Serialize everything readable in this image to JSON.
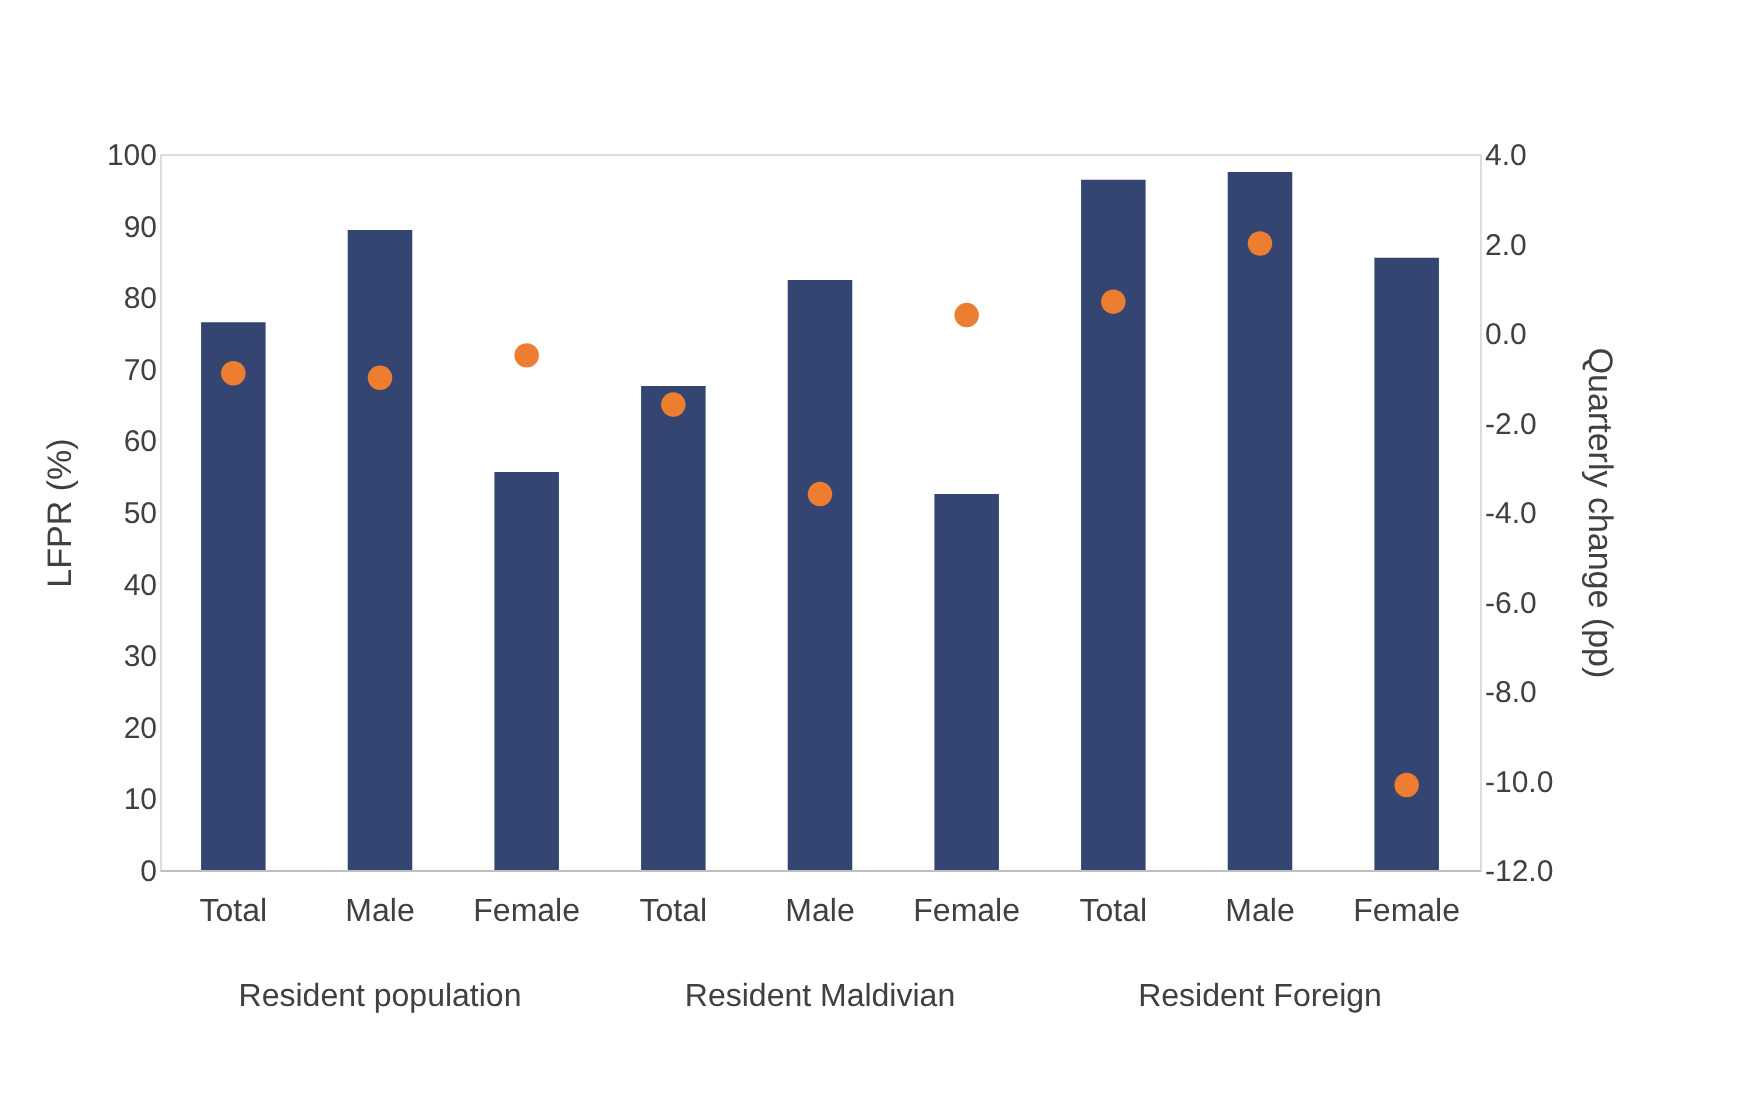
{
  "chart_data": {
    "type": "bar",
    "ylabel": "LFPR (%)",
    "y2label": "Quarterly change (pp)",
    "categories": [
      "Total",
      "Male",
      "Female",
      "Total",
      "Male",
      "Female",
      "Total",
      "Male",
      "Female"
    ],
    "series": [
      {
        "color": "#334570",
        "values": [
          76.5,
          89.4,
          55.6,
          67.6,
          82.4,
          52.5,
          96.4,
          97.5,
          85.5
        ]
      },
      {
        "type": "scatter",
        "axis": "y2",
        "color": "#ed7d31",
        "marker": "circle",
        "values": [
          -0.9,
          -1.0,
          -0.5,
          -1.6,
          -3.6,
          0.4,
          0.7,
          2.0,
          -10.1
        ]
      }
    ],
    "ylim": [
      0,
      100
    ],
    "yticks": [
      0,
      10,
      20,
      30,
      40,
      50,
      60,
      70,
      80,
      90,
      100
    ],
    "y2lim": [
      -12.0,
      4.0
    ],
    "y2ticks": [
      {
        "value": -12,
        "label": "-12.0"
      },
      {
        "value": -10,
        "label": "-10.0"
      },
      {
        "value": -8,
        "label": "-8.0"
      },
      {
        "value": -6,
        "label": "-6.0"
      },
      {
        "value": -4,
        "label": "-4.0"
      },
      {
        "value": -2,
        "label": "-2.0"
      },
      {
        "value": 0,
        "label": "0.0"
      },
      {
        "value": 2,
        "label": "2.0"
      },
      {
        "value": 4,
        "label": "4.0"
      }
    ],
    "annotations": [
      "Resident population",
      "Resident Maldivian",
      "Resident Foreign"
    ],
    "grid": false
  }
}
